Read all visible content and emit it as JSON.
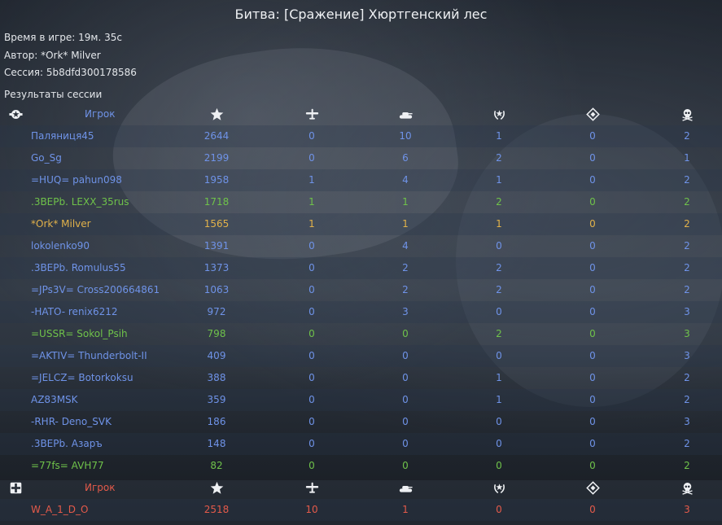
{
  "title": "Битва: [Сражение] Хюртгенский лес",
  "info": {
    "time": "Время в игре: 19м. 35с",
    "author": "Автор: *Ork* Milver",
    "session": "Сессия: 5b8dfd300178586"
  },
  "results_label": "Результаты сессии",
  "header_icons": [
    "star-icon",
    "plane-icon",
    "tank-icon",
    "wreath-award-icon",
    "capture-diamond-icon",
    "skull-icon"
  ],
  "colors": {
    "blue": "#6f93e8",
    "green": "#6fc24a",
    "gold": "#e2b24a",
    "red": "#e45a4a"
  },
  "team1": {
    "header": "Игрок",
    "team_icon": "allied-star-roundel-icon",
    "players": [
      {
        "name": "Паляниця45",
        "score": "2644",
        "air": "0",
        "ground": "10",
        "awards": "1",
        "captures": "0",
        "deaths": "2",
        "color": "blue"
      },
      {
        "name": "Go_Sg",
        "score": "2199",
        "air": "0",
        "ground": "6",
        "awards": "2",
        "captures": "0",
        "deaths": "1",
        "color": "blue"
      },
      {
        "name": "=HUQ= pahun098",
        "score": "1958",
        "air": "1",
        "ground": "4",
        "awards": "1",
        "captures": "0",
        "deaths": "2",
        "color": "blue"
      },
      {
        "name": ".3BEPb. LEXX_35rus",
        "score": "1718",
        "air": "1",
        "ground": "1",
        "awards": "2",
        "captures": "0",
        "deaths": "2",
        "color": "green"
      },
      {
        "name": "*Ork* Milver",
        "score": "1565",
        "air": "1",
        "ground": "1",
        "awards": "1",
        "captures": "0",
        "deaths": "2",
        "color": "gold"
      },
      {
        "name": "lokolenko90",
        "score": "1391",
        "air": "0",
        "ground": "4",
        "awards": "0",
        "captures": "0",
        "deaths": "2",
        "color": "blue"
      },
      {
        "name": ".3BEPb. Romulus55",
        "score": "1373",
        "air": "0",
        "ground": "2",
        "awards": "2",
        "captures": "0",
        "deaths": "2",
        "color": "blue"
      },
      {
        "name": "=JPs3V= Cross200664861",
        "score": "1063",
        "air": "0",
        "ground": "2",
        "awards": "2",
        "captures": "0",
        "deaths": "2",
        "color": "blue"
      },
      {
        "name": "-HATO- renix6212",
        "score": "972",
        "air": "0",
        "ground": "3",
        "awards": "0",
        "captures": "0",
        "deaths": "3",
        "color": "blue"
      },
      {
        "name": "=USSR= Sokol_Psih",
        "score": "798",
        "air": "0",
        "ground": "0",
        "awards": "2",
        "captures": "0",
        "deaths": "3",
        "color": "green"
      },
      {
        "name": "=AKTIV= Thunderbolt-II",
        "score": "409",
        "air": "0",
        "ground": "0",
        "awards": "0",
        "captures": "0",
        "deaths": "3",
        "color": "blue"
      },
      {
        "name": "=JELCZ= Botorkoksu",
        "score": "388",
        "air": "0",
        "ground": "0",
        "awards": "1",
        "captures": "0",
        "deaths": "2",
        "color": "blue"
      },
      {
        "name": "AZ83MSK",
        "score": "359",
        "air": "0",
        "ground": "0",
        "awards": "1",
        "captures": "0",
        "deaths": "2",
        "color": "blue"
      },
      {
        "name": "-RHR- Deno_SVK",
        "score": "186",
        "air": "0",
        "ground": "0",
        "awards": "0",
        "captures": "0",
        "deaths": "3",
        "color": "blue"
      },
      {
        "name": ".3BEPb. Азаръ",
        "score": "148",
        "air": "0",
        "ground": "0",
        "awards": "0",
        "captures": "0",
        "deaths": "2",
        "color": "blue"
      },
      {
        "name": "=77fs= AVH77",
        "score": "82",
        "air": "0",
        "ground": "0",
        "awards": "0",
        "captures": "0",
        "deaths": "2",
        "color": "green"
      }
    ]
  },
  "team2": {
    "header": "Игрок",
    "team_icon": "axis-cross-roundel-icon",
    "players": [
      {
        "name": "W_A_1_D_O",
        "score": "2518",
        "air": "10",
        "ground": "1",
        "awards": "0",
        "captures": "0",
        "deaths": "3",
        "color": "red"
      }
    ]
  }
}
